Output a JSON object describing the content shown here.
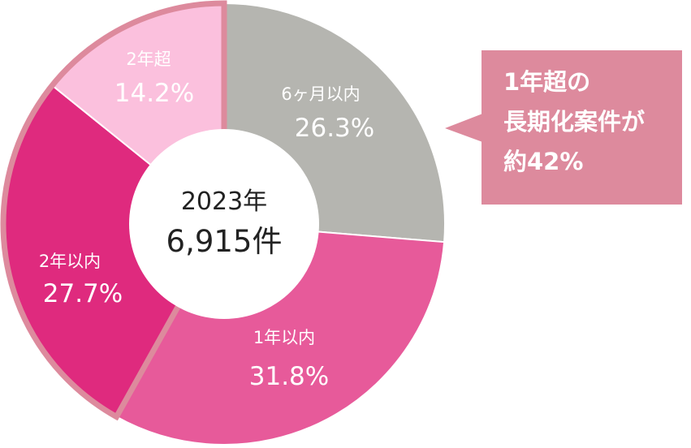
{
  "chart_data": {
    "type": "pie",
    "title": "",
    "center": {
      "year": "2023年",
      "count": "6,915件"
    },
    "slices": [
      {
        "name": "6ヶ月以内",
        "value": 26.3,
        "label": "26.3%",
        "color": "#b5b5b0"
      },
      {
        "name": "1年以内",
        "value": 31.8,
        "label": "31.8%",
        "color": "#e75a9a"
      },
      {
        "name": "2年以内",
        "value": 27.7,
        "label": "27.7%",
        "color": "#df2a7e"
      },
      {
        "name": "2年超",
        "value": 14.2,
        "label": "14.2%",
        "color": "#fbc0dd"
      }
    ],
    "highlight_color": "#dd8a9d",
    "callout": {
      "lines": [
        "1年超の",
        "長期化案件が",
        "約42%"
      ],
      "color": "#dd8a9d"
    }
  }
}
